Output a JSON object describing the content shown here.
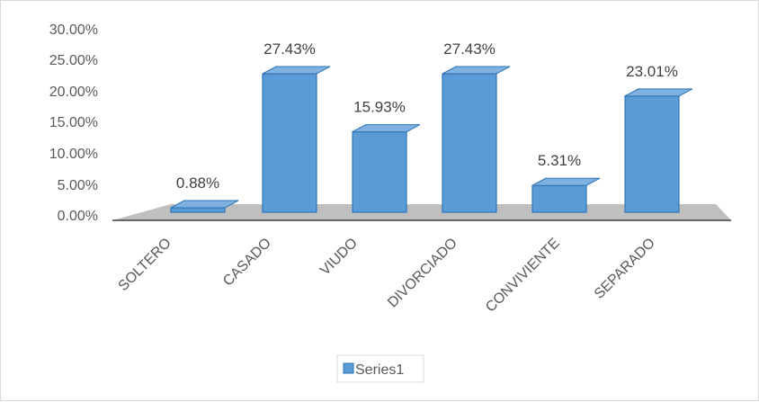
{
  "chart_data": {
    "type": "bar",
    "style": "3d-clustered-column",
    "categories": [
      "SOLTERO",
      "CASADO",
      "VIUDO",
      "DIVORCIADO",
      "CONVIVIENTE",
      "SEPARADO"
    ],
    "series": [
      {
        "name": "Series1",
        "values": [
          0.88,
          27.43,
          15.93,
          27.43,
          5.31,
          23.01
        ],
        "labels": [
          "0.88%",
          "27.43%",
          "15.93%",
          "27.43%",
          "5.31%",
          "23.01%"
        ],
        "color": "#5b9bd5"
      }
    ],
    "y_ticks": [
      "0.00%",
      "5.00%",
      "10.00%",
      "15.00%",
      "20.00%",
      "25.00%",
      "30.00%"
    ],
    "ylim": [
      0,
      30
    ],
    "y_unit": "percent",
    "grid": false,
    "legend": "bottom",
    "title": "",
    "xlabel": "",
    "ylabel": ""
  },
  "legend": {
    "label": "Series1"
  },
  "colors": {
    "bar_front": "#5b9bd5",
    "bar_side": "#4a82b8",
    "bar_top": "#7fb1e0",
    "bar_edge": "#2e75b6",
    "floor": "#bfbfbf",
    "axis": "#404040"
  }
}
